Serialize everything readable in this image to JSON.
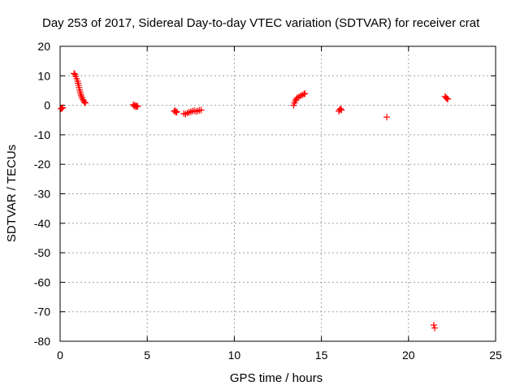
{
  "chart_data": {
    "type": "scatter",
    "title": "Day 253 of 2017, Sidereal Day-to-day VTEC variation (SDTVAR) for receiver crat",
    "xlabel": "GPS time / hours",
    "ylabel": "SDTVAR / TECUs",
    "xlim": [
      0,
      25
    ],
    "ylim": [
      -80,
      20
    ],
    "xticks": [
      0,
      5,
      10,
      15,
      20,
      25
    ],
    "yticks": [
      20,
      10,
      0,
      -10,
      -20,
      -30,
      -40,
      -50,
      -60,
      -70,
      -80
    ],
    "grid": true,
    "legend": "none",
    "marker": "+",
    "colors": {
      "points": "#ff0000",
      "grid": "#a0a0a0",
      "axes": "#000000"
    },
    "series": [
      {
        "name": "SDTVAR",
        "points": [
          [
            0.05,
            -1.2
          ],
          [
            0.1,
            -1.0
          ],
          [
            0.15,
            -0.8
          ],
          [
            0.8,
            10.8
          ],
          [
            0.85,
            10.5
          ],
          [
            0.9,
            9.8
          ],
          [
            0.95,
            9.0
          ],
          [
            1.0,
            8.2
          ],
          [
            1.03,
            7.5
          ],
          [
            1.06,
            6.8
          ],
          [
            1.09,
            6.0
          ],
          [
            1.12,
            5.2
          ],
          [
            1.15,
            4.5
          ],
          [
            1.18,
            3.8
          ],
          [
            1.21,
            3.2
          ],
          [
            1.25,
            2.6
          ],
          [
            1.3,
            2.0
          ],
          [
            1.35,
            1.5
          ],
          [
            1.4,
            1.0
          ],
          [
            1.45,
            0.8
          ],
          [
            4.2,
            0.2
          ],
          [
            4.25,
            -0.3
          ],
          [
            4.3,
            0.0
          ],
          [
            4.35,
            -0.5
          ],
          [
            4.4,
            -0.2
          ],
          [
            4.45,
            -0.4
          ],
          [
            6.55,
            -2.0
          ],
          [
            6.6,
            -1.8
          ],
          [
            6.65,
            -2.4
          ],
          [
            6.7,
            -2.2
          ],
          [
            7.1,
            -2.8
          ],
          [
            7.2,
            -3.0
          ],
          [
            7.3,
            -2.6
          ],
          [
            7.4,
            -2.4
          ],
          [
            7.5,
            -2.2
          ],
          [
            7.6,
            -2.0
          ],
          [
            7.7,
            -1.8
          ],
          [
            7.8,
            -2.1
          ],
          [
            7.9,
            -1.9
          ],
          [
            8.0,
            -1.7
          ],
          [
            8.1,
            -1.6
          ],
          [
            13.4,
            0.0
          ],
          [
            13.45,
            0.8
          ],
          [
            13.5,
            1.5
          ],
          [
            13.55,
            2.0
          ],
          [
            13.6,
            2.5
          ],
          [
            13.7,
            2.8
          ],
          [
            13.8,
            3.2
          ],
          [
            13.9,
            3.5
          ],
          [
            14.0,
            3.8
          ],
          [
            14.05,
            4.0
          ],
          [
            16.0,
            -2.0
          ],
          [
            16.05,
            -1.5
          ],
          [
            16.1,
            -1.2
          ],
          [
            16.15,
            -1.6
          ],
          [
            18.75,
            -4.0
          ],
          [
            21.45,
            -74.5
          ],
          [
            21.5,
            -75.5
          ],
          [
            22.1,
            3.0
          ],
          [
            22.15,
            2.6
          ],
          [
            22.2,
            2.3
          ],
          [
            22.25,
            2.1
          ]
        ]
      }
    ]
  }
}
